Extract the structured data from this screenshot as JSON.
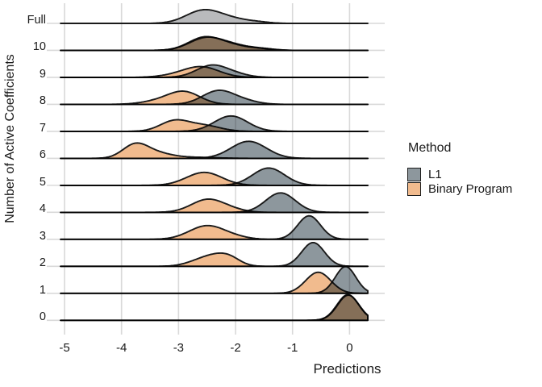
{
  "chart_data": {
    "type": "ridgeline",
    "title": "",
    "xlabel": "Predictions",
    "ylabel": "Number of Active Coefficients",
    "x_ticks": [
      -5,
      -4,
      -3,
      -2,
      -1,
      0
    ],
    "x_tick_labels": [
      "-5",
      "-4",
      "-3",
      "-2",
      "-1",
      "0"
    ],
    "xlim": [
      -5.07,
      0.32
    ],
    "grid": "vertical and horizontal light-gray gridlines, white background",
    "legend_position": "right",
    "colors": {
      "L1": "#8D979D",
      "Binary Program": "#F1BB8E",
      "Full": "#B9BABC",
      "stroke": "#1a1a1a",
      "gridline": "#d9d9d9",
      "overlap_appearance": "#A87C52"
    },
    "legend": {
      "title": "Method",
      "entries": [
        {
          "label": "L1",
          "color": "#8D979D"
        },
        {
          "label": "Binary Program",
          "color": "#F1BB8E"
        }
      ]
    },
    "rows": [
      {
        "label": "Full",
        "series": [
          {
            "method": "Full",
            "peak_x": -2.57,
            "peak_height": 0.51,
            "components": [
              [
                -2.57,
                0.3,
                1.0
              ],
              [
                -2.08,
                0.28,
                0.3
              ],
              [
                -1.62,
                0.22,
                0.1
              ]
            ]
          }
        ]
      },
      {
        "label": "10",
        "series": [
          {
            "method": "Binary Program",
            "peak_x": -2.55,
            "peak_height": 0.51,
            "components": [
              [
                -2.55,
                0.28,
                1.0
              ],
              [
                -2.08,
                0.27,
                0.35
              ],
              [
                -1.58,
                0.22,
                0.12
              ]
            ]
          },
          {
            "method": "L1",
            "peak_x": -2.52,
            "peak_height": 0.49,
            "components": [
              [
                -2.52,
                0.29,
                1.0
              ],
              [
                -2.03,
                0.27,
                0.36
              ],
              [
                -1.53,
                0.22,
                0.13
              ]
            ]
          }
        ]
      },
      {
        "label": "9",
        "series": [
          {
            "method": "Binary Program",
            "peak_x": -2.6,
            "peak_height": 0.4,
            "components": [
              [
                -2.6,
                0.31,
                1.0
              ],
              [
                -3.08,
                0.28,
                0.15
              ]
            ]
          },
          {
            "method": "L1",
            "peak_x": -2.42,
            "peak_height": 0.46,
            "components": [
              [
                -2.42,
                0.27,
                1.0
              ],
              [
                -2.0,
                0.24,
                0.22
              ]
            ]
          }
        ]
      },
      {
        "label": "8",
        "series": [
          {
            "method": "Binary Program",
            "peak_x": -2.9,
            "peak_height": 0.49,
            "components": [
              [
                -2.9,
                0.28,
                1.0
              ],
              [
                -3.35,
                0.3,
                0.25
              ]
            ]
          },
          {
            "method": "L1",
            "peak_x": -2.3,
            "peak_height": 0.52,
            "components": [
              [
                -2.3,
                0.28,
                1.0
              ],
              [
                -1.83,
                0.25,
                0.2
              ]
            ]
          }
        ]
      },
      {
        "label": "7",
        "series": [
          {
            "method": "Binary Program",
            "peak_x": -3.05,
            "peak_height": 0.43,
            "components": [
              [
                -3.07,
                0.25,
                1.0
              ],
              [
                -2.55,
                0.28,
                0.55
              ]
            ]
          },
          {
            "method": "L1",
            "peak_x": -2.08,
            "peak_height": 0.57,
            "components": [
              [
                -2.08,
                0.29,
                1.0
              ]
            ]
          }
        ]
      },
      {
        "label": "6",
        "series": [
          {
            "method": "Binary Program",
            "peak_x": -3.76,
            "peak_height": 0.57,
            "components": [
              [
                -3.76,
                0.22,
                1.0
              ],
              [
                -3.38,
                0.26,
                0.35
              ],
              [
                -2.75,
                0.38,
                0.08
              ]
            ]
          },
          {
            "method": "L1",
            "peak_x": -1.77,
            "peak_height": 0.63,
            "components": [
              [
                -1.77,
                0.31,
                1.0
              ]
            ]
          }
        ]
      },
      {
        "label": "5",
        "series": [
          {
            "method": "Binary Program",
            "peak_x": -2.55,
            "peak_height": 0.48,
            "components": [
              [
                -2.55,
                0.31,
                1.0
              ]
            ]
          },
          {
            "method": "L1",
            "peak_x": -1.42,
            "peak_height": 0.64,
            "components": [
              [
                -1.42,
                0.28,
                1.0
              ]
            ]
          }
        ]
      },
      {
        "label": "4",
        "series": [
          {
            "method": "Binary Program",
            "peak_x": -2.48,
            "peak_height": 0.49,
            "components": [
              [
                -2.48,
                0.29,
                1.0
              ],
              [
                -2.02,
                0.22,
                0.12
              ]
            ]
          },
          {
            "method": "L1",
            "peak_x": -1.21,
            "peak_height": 0.72,
            "components": [
              [
                -1.21,
                0.26,
                1.0
              ]
            ]
          }
        ]
      },
      {
        "label": "3",
        "series": [
          {
            "method": "Binary Program",
            "peak_x": -2.5,
            "peak_height": 0.51,
            "components": [
              [
                -2.5,
                0.31,
                1.0
              ],
              [
                -2.0,
                0.24,
                0.12
              ]
            ]
          },
          {
            "method": "L1",
            "peak_x": -0.71,
            "peak_height": 0.87,
            "components": [
              [
                -0.71,
                0.2,
                1.0
              ]
            ]
          }
        ]
      },
      {
        "label": "2",
        "series": [
          {
            "method": "Binary Program",
            "peak_x": -2.2,
            "peak_height": 0.49,
            "components": [
              [
                -2.42,
                0.22,
                0.9
              ],
              [
                -2.12,
                0.2,
                0.95
              ],
              [
                -2.72,
                0.22,
                0.35
              ]
            ]
          },
          {
            "method": "L1",
            "peak_x": -0.64,
            "peak_height": 0.88,
            "components": [
              [
                -0.64,
                0.2,
                1.0
              ]
            ]
          }
        ]
      },
      {
        "label": "1",
        "series": [
          {
            "method": "Binary Program",
            "peak_x": -0.55,
            "peak_height": 0.78,
            "components": [
              [
                -0.55,
                0.22,
                1.0
              ]
            ]
          },
          {
            "method": "L1",
            "peak_x": -0.07,
            "peak_height": 0.99,
            "components": [
              [
                -0.07,
                0.18,
                1.0
              ]
            ]
          }
        ]
      },
      {
        "label": "0",
        "series": [
          {
            "method": "Binary Program",
            "peak_x": -0.03,
            "peak_height": 0.95,
            "components": [
              [
                -0.03,
                0.19,
                1.0
              ]
            ]
          },
          {
            "method": "L1",
            "peak_x": -0.02,
            "peak_height": 0.93,
            "components": [
              [
                -0.02,
                0.19,
                1.0
              ]
            ]
          }
        ]
      }
    ]
  }
}
